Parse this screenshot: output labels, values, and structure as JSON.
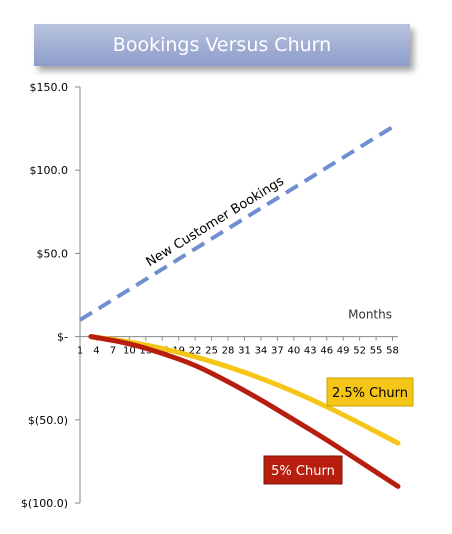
{
  "chart_data": {
    "type": "line",
    "title": "Bookings Versus Churn",
    "xlabel": "Months",
    "ylabel": "",
    "ylim": [
      -100,
      150
    ],
    "xlim": [
      1,
      59
    ],
    "y_ticks": [
      150,
      100,
      50,
      0,
      -50,
      -100
    ],
    "y_tick_labels": [
      "$150.0",
      "$100.0",
      "$50.0",
      "$-",
      "$(50.0)",
      "$(100.0)"
    ],
    "x_ticks": [
      1,
      4,
      7,
      10,
      13,
      16,
      19,
      22,
      25,
      28,
      31,
      34,
      37,
      40,
      43,
      46,
      49,
      52,
      55,
      58
    ],
    "grid": false,
    "series": [
      {
        "name": "New Customer Bookings",
        "color": "#6f8fd0",
        "style": "dashed",
        "x": [
          1,
          59
        ],
        "values": [
          10,
          128
        ]
      },
      {
        "name": "2.5% Churn",
        "color": "#f5c518",
        "style": "solid",
        "x": [
          3,
          10,
          16,
          22,
          28,
          34,
          40,
          46,
          52,
          59
        ],
        "values": [
          0,
          -3,
          -7,
          -12,
          -18,
          -25,
          -33,
          -42,
          -52,
          -64
        ]
      },
      {
        "name": "5% Churn",
        "color": "#b81e0e",
        "style": "solid",
        "x": [
          3,
          10,
          16,
          22,
          28,
          34,
          40,
          46,
          52,
          59
        ],
        "values": [
          0,
          -4,
          -10,
          -17,
          -27,
          -38,
          -50,
          -62,
          -75,
          -90
        ]
      }
    ]
  }
}
